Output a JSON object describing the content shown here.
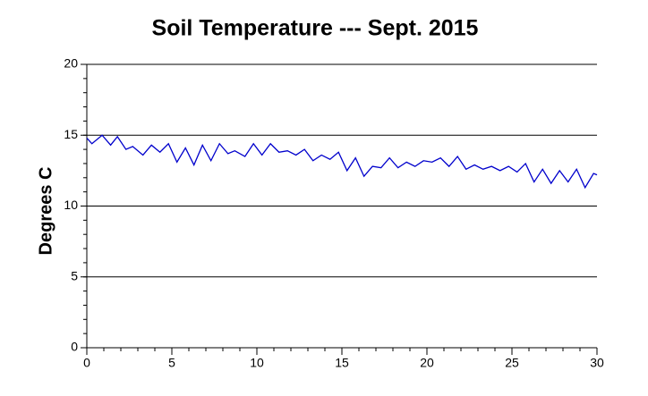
{
  "chart_data": {
    "type": "line",
    "title": "Soil Temperature --- Sept. 2015",
    "ylabel": "Degrees C",
    "xlim": [
      0,
      30
    ],
    "xticks": [
      0,
      5,
      10,
      15,
      20,
      25,
      30
    ],
    "ylim": [
      0,
      20
    ],
    "yticks": [
      0,
      5,
      10,
      15,
      20
    ],
    "xminor": 1,
    "yminor": 1,
    "grid": true,
    "series": [
      {
        "color": "#0000cc",
        "x": [
          0,
          0.3,
          0.9,
          1.4,
          1.8,
          2.3,
          2.7,
          3.3,
          3.8,
          4.3,
          4.8,
          5.3,
          5.8,
          6.3,
          6.8,
          7.3,
          7.8,
          8.3,
          8.7,
          9.3,
          9.8,
          10.3,
          10.8,
          11.3,
          11.8,
          12.3,
          12.8,
          13.3,
          13.8,
          14.3,
          14.8,
          15.3,
          15.8,
          16.3,
          16.8,
          17.3,
          17.8,
          18.3,
          18.8,
          19.3,
          19.8,
          20.3,
          20.8,
          21.3,
          21.8,
          22.3,
          22.8,
          23.3,
          23.8,
          24.3,
          24.8,
          25.3,
          25.8,
          26.3,
          26.8,
          27.3,
          27.8,
          28.3,
          28.8,
          29.3,
          29.8,
          30
        ],
        "values": [
          14.8,
          14.4,
          15.0,
          14.3,
          14.9,
          14.0,
          14.2,
          13.6,
          14.3,
          13.8,
          14.4,
          13.1,
          14.1,
          12.9,
          14.3,
          13.2,
          14.4,
          13.7,
          13.9,
          13.5,
          14.4,
          13.6,
          14.4,
          13.8,
          13.9,
          13.6,
          14.0,
          13.2,
          13.6,
          13.3,
          13.8,
          12.5,
          13.4,
          12.1,
          12.8,
          12.7,
          13.4,
          12.7,
          13.1,
          12.8,
          13.2,
          13.1,
          13.4,
          12.8,
          13.5,
          12.6,
          12.9,
          12.6,
          12.8,
          12.5,
          12.8,
          12.4,
          13.0,
          11.7,
          12.6,
          11.6,
          12.5,
          11.7,
          12.6,
          11.3,
          12.3,
          12.2
        ]
      }
    ]
  }
}
